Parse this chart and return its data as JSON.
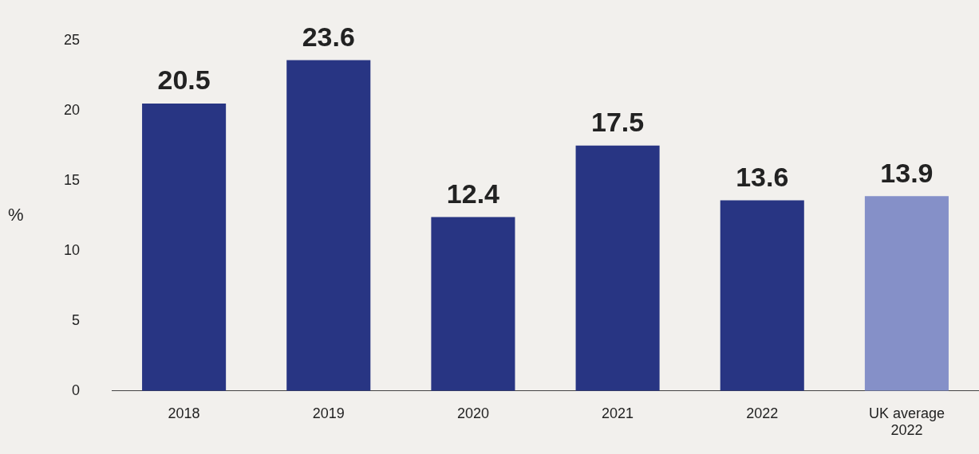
{
  "chart_data": {
    "type": "bar",
    "ylabel": "%",
    "categories": [
      "2018",
      "2019",
      "2020",
      "2021",
      "2022",
      "UK average 2022"
    ],
    "values": [
      20.5,
      23.6,
      12.4,
      17.5,
      13.6,
      13.9
    ],
    "colors": [
      "#283583",
      "#283583",
      "#283583",
      "#283583",
      "#283583",
      "#8590c8"
    ],
    "ylim": [
      0,
      25
    ],
    "yticks": [
      0,
      5,
      10,
      15,
      20,
      25
    ],
    "grid": false,
    "legend": false,
    "data_labels": true
  }
}
